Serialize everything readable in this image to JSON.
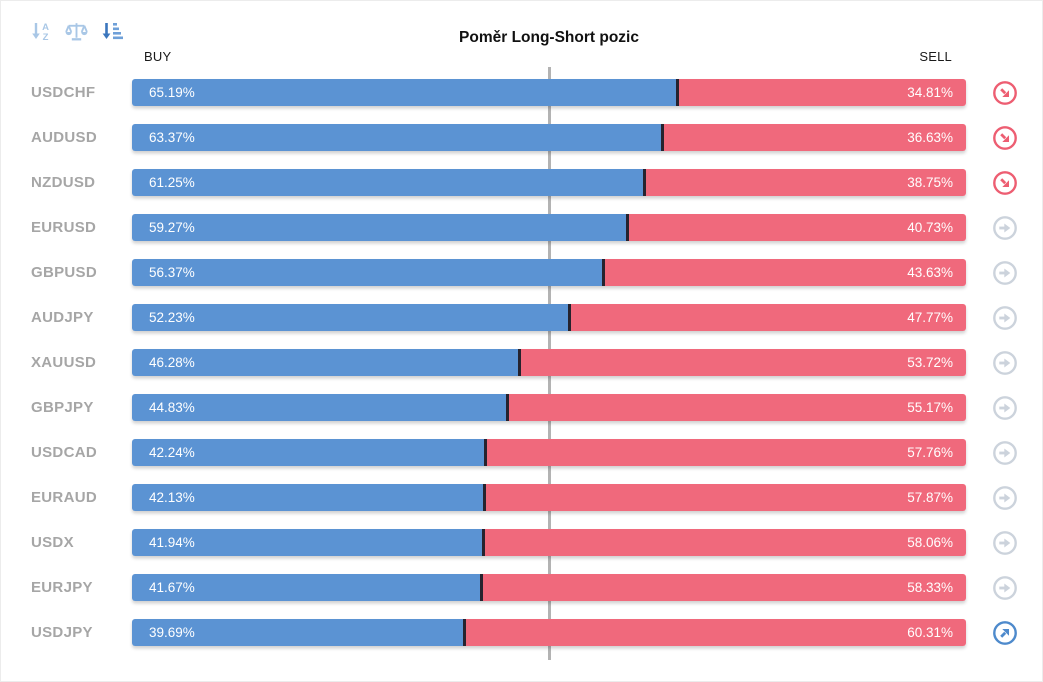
{
  "title": "Poměr Long-Short pozic",
  "columns": {
    "buy": "BUY",
    "sell": "SELL"
  },
  "toolbar": {
    "icons": [
      {
        "name": "sort-alphabetical-icon",
        "active": false
      },
      {
        "name": "balance-scale-icon",
        "active": false
      },
      {
        "name": "sort-amount-desc-icon",
        "active": true
      }
    ]
  },
  "colors": {
    "buy_bar": "#5b93d3",
    "sell_bar": "#f0697c",
    "segment_separator": "#26232e",
    "center_line": "#b3b3b3",
    "pair_label": "#a6a6a6",
    "trend_down_icon": "#ed5e72",
    "trend_flat_icon": "#ccd3dc",
    "trend_up_icon": "#4e8acc",
    "toolbar_inactive": "#a9c7e6",
    "toolbar_active": "#3b76bd"
  },
  "chart_data": {
    "type": "bar",
    "orientation": "horizontal",
    "stacked": true,
    "title": "Poměr Long-Short pozic",
    "categories": [
      "USDCHF",
      "AUDUSD",
      "NZDUSD",
      "EURUSD",
      "GBPUSD",
      "AUDJPY",
      "XAUUSD",
      "GBPJPY",
      "USDCAD",
      "EURAUD",
      "USDX",
      "EURJPY",
      "USDJPY"
    ],
    "series": [
      {
        "name": "BUY",
        "color": "#5b93d3",
        "values": [
          65.19,
          63.37,
          61.25,
          59.27,
          56.37,
          52.23,
          46.28,
          44.83,
          42.24,
          42.13,
          41.94,
          41.67,
          39.69
        ]
      },
      {
        "name": "SELL",
        "color": "#f0697c",
        "values": [
          34.81,
          36.63,
          38.75,
          40.73,
          43.63,
          47.77,
          53.72,
          55.17,
          57.76,
          57.87,
          58.06,
          58.33,
          60.31
        ]
      }
    ],
    "xlim": [
      0,
      100
    ],
    "center_reference_line_at": 50,
    "value_format": "percent",
    "legend_position": "column-headers-top"
  },
  "rows": [
    {
      "pair": "USDCHF",
      "buy": 65.19,
      "sell": 34.81,
      "buy_label": "65.19%",
      "sell_label": "34.81%",
      "trend": "down"
    },
    {
      "pair": "AUDUSD",
      "buy": 63.37,
      "sell": 36.63,
      "buy_label": "63.37%",
      "sell_label": "36.63%",
      "trend": "down"
    },
    {
      "pair": "NZDUSD",
      "buy": 61.25,
      "sell": 38.75,
      "buy_label": "61.25%",
      "sell_label": "38.75%",
      "trend": "down"
    },
    {
      "pair": "EURUSD",
      "buy": 59.27,
      "sell": 40.73,
      "buy_label": "59.27%",
      "sell_label": "40.73%",
      "trend": "flat"
    },
    {
      "pair": "GBPUSD",
      "buy": 56.37,
      "sell": 43.63,
      "buy_label": "56.37%",
      "sell_label": "43.63%",
      "trend": "flat"
    },
    {
      "pair": "AUDJPY",
      "buy": 52.23,
      "sell": 47.77,
      "buy_label": "52.23%",
      "sell_label": "47.77%",
      "trend": "flat"
    },
    {
      "pair": "XAUUSD",
      "buy": 46.28,
      "sell": 53.72,
      "buy_label": "46.28%",
      "sell_label": "53.72%",
      "trend": "flat"
    },
    {
      "pair": "GBPJPY",
      "buy": 44.83,
      "sell": 55.17,
      "buy_label": "44.83%",
      "sell_label": "55.17%",
      "trend": "flat"
    },
    {
      "pair": "USDCAD",
      "buy": 42.24,
      "sell": 57.76,
      "buy_label": "42.24%",
      "sell_label": "57.76%",
      "trend": "flat"
    },
    {
      "pair": "EURAUD",
      "buy": 42.13,
      "sell": 57.87,
      "buy_label": "42.13%",
      "sell_label": "57.87%",
      "trend": "flat"
    },
    {
      "pair": "USDX",
      "buy": 41.94,
      "sell": 58.06,
      "buy_label": "41.94%",
      "sell_label": "58.06%",
      "trend": "flat"
    },
    {
      "pair": "EURJPY",
      "buy": 41.67,
      "sell": 58.33,
      "buy_label": "41.67%",
      "sell_label": "58.33%",
      "trend": "flat"
    },
    {
      "pair": "USDJPY",
      "buy": 39.69,
      "sell": 60.31,
      "buy_label": "39.69%",
      "sell_label": "60.31%",
      "trend": "up"
    }
  ]
}
